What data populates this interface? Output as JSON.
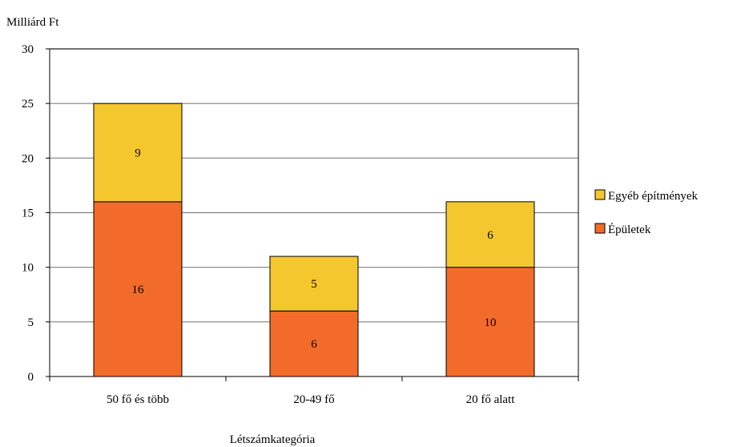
{
  "chart_data": {
    "type": "bar",
    "stacked": true,
    "ylabel": "Milliárd Ft",
    "xlabel": "Létszámkategória",
    "categories": [
      "50 fő és több",
      "20-49 fő",
      "20 fő alatt"
    ],
    "series": [
      {
        "name": "Épületek",
        "values": [
          16,
          6,
          10
        ],
        "color": "#F26B2A"
      },
      {
        "name": "Egyéb építmények",
        "values": [
          9,
          5,
          6
        ],
        "color": "#F5C72E"
      }
    ],
    "ylim": [
      0,
      30
    ],
    "yticks": [
      0,
      5,
      10,
      15,
      20,
      25,
      30
    ],
    "grid": true,
    "legend": "right"
  }
}
